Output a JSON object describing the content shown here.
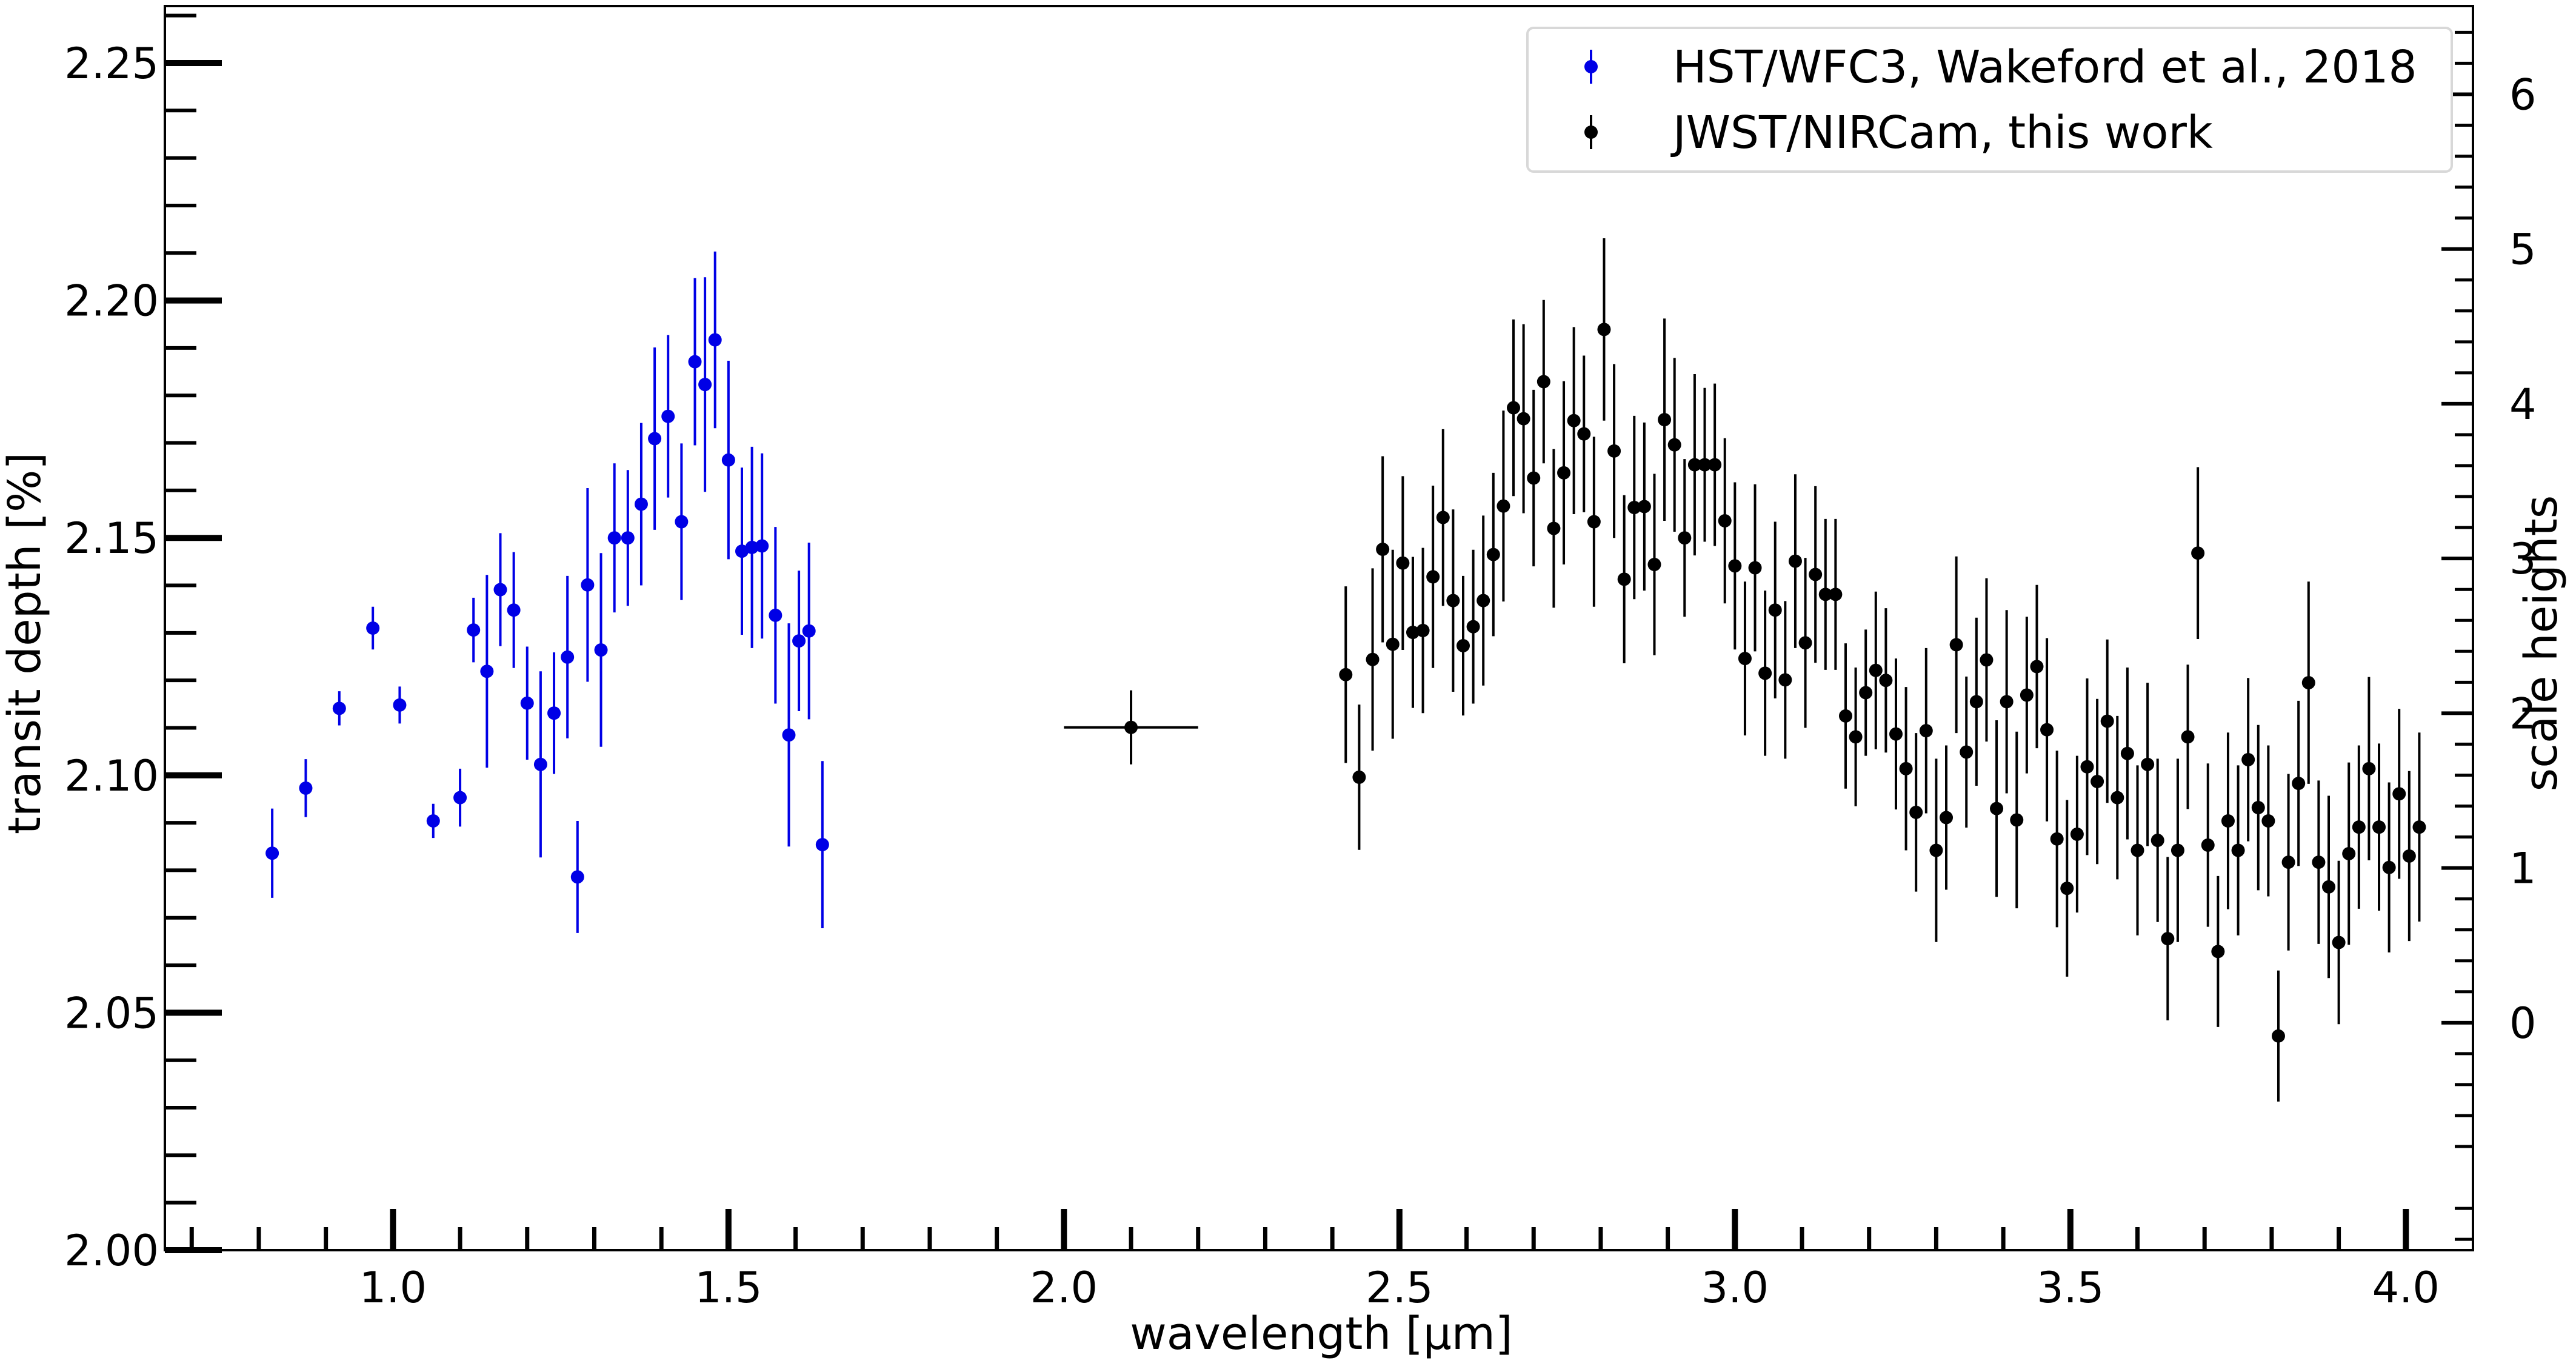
{
  "chart_data": {
    "type": "scatter",
    "xlabel": "wavelength [μm]",
    "ylabel": "transit depth [%]",
    "y2label": "scale heights",
    "xlim": [
      0.66,
      4.1
    ],
    "ylim": [
      2.0,
      2.262
    ],
    "y2lim": [
      -1.47,
      6.57
    ],
    "xticks": [
      "1.0",
      "1.5",
      "2.0",
      "2.5",
      "3.0",
      "3.5",
      "4.0"
    ],
    "yticks": [
      "2.00",
      "2.05",
      "2.10",
      "2.15",
      "2.20",
      "2.25"
    ],
    "y2ticks": [
      "0",
      "1",
      "2",
      "3",
      "4",
      "5",
      "6"
    ],
    "grid": false,
    "legend_position": "top-right",
    "series": [
      {
        "name": "HST/WFC3, Wakeford et al., 2018",
        "color": "#0000e6",
        "points": [
          [
            0.82,
            2.0836,
            0.0094
          ],
          [
            0.87,
            2.0973,
            0.0061
          ],
          [
            0.92,
            2.1141,
            0.0036
          ],
          [
            0.97,
            2.131,
            0.0045
          ],
          [
            1.01,
            2.1148,
            0.0039
          ],
          [
            1.06,
            2.0904,
            0.0036
          ],
          [
            1.1,
            2.0953,
            0.0061
          ],
          [
            1.12,
            2.1306,
            0.0068
          ],
          [
            1.14,
            2.1219,
            0.0203
          ],
          [
            1.16,
            2.1391,
            0.0119
          ],
          [
            1.18,
            2.1348,
            0.0122
          ],
          [
            1.2,
            2.1152,
            0.0119
          ],
          [
            1.22,
            2.1023,
            0.0196
          ],
          [
            1.24,
            2.1131,
            0.0128
          ],
          [
            1.26,
            2.1249,
            0.0171
          ],
          [
            1.275,
            2.0786,
            0.0118
          ],
          [
            1.29,
            2.1401,
            0.0204
          ],
          [
            1.31,
            2.1264,
            0.0204
          ],
          [
            1.33,
            2.15,
            0.0157
          ],
          [
            1.35,
            2.15,
            0.0143
          ],
          [
            1.37,
            2.1571,
            0.0171
          ],
          [
            1.39,
            2.1709,
            0.0192
          ],
          [
            1.41,
            2.1756,
            0.0171
          ],
          [
            1.43,
            2.1534,
            0.0165
          ],
          [
            1.45,
            2.1871,
            0.0176
          ],
          [
            1.465,
            2.1823,
            0.0226
          ],
          [
            1.48,
            2.1917,
            0.0186
          ],
          [
            1.5,
            2.1664,
            0.0209
          ],
          [
            1.52,
            2.1472,
            0.0176
          ],
          [
            1.535,
            2.148,
            0.0212
          ],
          [
            1.55,
            2.1483,
            0.0195
          ],
          [
            1.57,
            2.1337,
            0.0186
          ],
          [
            1.59,
            2.1085,
            0.0235
          ],
          [
            1.605,
            2.1283,
            0.0148
          ],
          [
            1.62,
            2.1304,
            0.0186
          ],
          [
            1.64,
            2.0854,
            0.0176
          ]
        ]
      },
      {
        "name": "JWST/NIRCam, this work",
        "color": "#000000",
        "points": [
          [
            2.1,
            2.1101,
            0.0078
          ],
          [
            2.42,
            2.1212,
            0.0186
          ],
          [
            2.44,
            2.0996,
            0.0153
          ],
          [
            2.46,
            2.1244,
            0.0192
          ],
          [
            2.475,
            2.1476,
            0.0196
          ],
          [
            2.49,
            2.1276,
            0.0199
          ],
          [
            2.505,
            2.1447,
            0.0183
          ],
          [
            2.52,
            2.1301,
            0.0159
          ],
          [
            2.535,
            2.1305,
            0.0174
          ],
          [
            2.55,
            2.1418,
            0.0192
          ],
          [
            2.565,
            2.1543,
            0.0186
          ],
          [
            2.58,
            2.1368,
            0.0192
          ],
          [
            2.595,
            2.1273,
            0.0147
          ],
          [
            2.61,
            2.1313,
            0.0162
          ],
          [
            2.625,
            2.1368,
            0.0179
          ],
          [
            2.64,
            2.1465,
            0.0172
          ],
          [
            2.655,
            2.1567,
            0.0201
          ],
          [
            2.67,
            2.1774,
            0.0186
          ],
          [
            2.685,
            2.1751,
            0.0199
          ],
          [
            2.7,
            2.1626,
            0.0186
          ],
          [
            2.715,
            2.1829,
            0.0172
          ],
          [
            2.73,
            2.152,
            0.0167
          ],
          [
            2.745,
            2.1637,
            0.0193
          ],
          [
            2.76,
            2.1747,
            0.0197
          ],
          [
            2.775,
            2.1719,
            0.0165
          ],
          [
            2.79,
            2.1534,
            0.0179
          ],
          [
            2.805,
            2.1939,
            0.0192
          ],
          [
            2.82,
            2.1683,
            0.0183
          ],
          [
            2.835,
            2.1413,
            0.0177
          ],
          [
            2.85,
            2.1564,
            0.0193
          ],
          [
            2.865,
            2.1566,
            0.0177
          ],
          [
            2.88,
            2.1444,
            0.0191
          ],
          [
            2.895,
            2.1749,
            0.0213
          ],
          [
            2.91,
            2.1696,
            0.0183
          ],
          [
            2.925,
            2.15,
            0.0166
          ],
          [
            2.94,
            2.1654,
            0.0191
          ],
          [
            2.955,
            2.1654,
            0.0162
          ],
          [
            2.97,
            2.1654,
            0.0171
          ],
          [
            2.985,
            2.1536,
            0.0174
          ],
          [
            3.0,
            2.1441,
            0.0176
          ],
          [
            3.015,
            2.1246,
            0.0162
          ],
          [
            3.03,
            2.1437,
            0.0176
          ],
          [
            3.045,
            2.1215,
            0.0174
          ],
          [
            3.06,
            2.1348,
            0.0186
          ],
          [
            3.075,
            2.1201,
            0.0166
          ],
          [
            3.09,
            2.1451,
            0.0183
          ],
          [
            3.105,
            2.1279,
            0.0179
          ],
          [
            3.12,
            2.1423,
            0.0186
          ],
          [
            3.135,
            2.1381,
            0.0159
          ],
          [
            3.15,
            2.1381,
            0.0159
          ],
          [
            3.165,
            2.1125,
            0.0153
          ],
          [
            3.18,
            2.1081,
            0.0146
          ],
          [
            3.195,
            2.1174,
            0.0133
          ],
          [
            3.21,
            2.1221,
            0.0166
          ],
          [
            3.225,
            2.12,
            0.0152
          ],
          [
            3.24,
            2.1087,
            0.0159
          ],
          [
            3.255,
            2.1014,
            0.0172
          ],
          [
            3.27,
            2.0922,
            0.0167
          ],
          [
            3.285,
            2.1094,
            0.0174
          ],
          [
            3.3,
            2.0842,
            0.0193
          ],
          [
            3.315,
            2.0911,
            0.0152
          ],
          [
            3.33,
            2.1275,
            0.0186
          ],
          [
            3.345,
            2.1049,
            0.0159
          ],
          [
            3.36,
            2.1155,
            0.0177
          ],
          [
            3.375,
            2.1243,
            0.0172
          ],
          [
            3.39,
            2.093,
            0.0186
          ],
          [
            3.405,
            2.1155,
            0.0193
          ],
          [
            3.42,
            2.0906,
            0.0186
          ],
          [
            3.435,
            2.1169,
            0.0165
          ],
          [
            3.45,
            2.1229,
            0.0172
          ],
          [
            3.465,
            2.1096,
            0.0193
          ],
          [
            3.48,
            2.0866,
            0.0186
          ],
          [
            3.495,
            2.0762,
            0.0186
          ],
          [
            3.51,
            2.0876,
            0.0165
          ],
          [
            3.525,
            2.1018,
            0.0186
          ],
          [
            3.54,
            2.0987,
            0.0174
          ],
          [
            3.555,
            2.1114,
            0.0172
          ],
          [
            3.57,
            2.0953,
            0.0172
          ],
          [
            3.585,
            2.1046,
            0.0181
          ],
          [
            3.6,
            2.0842,
            0.0179
          ],
          [
            3.615,
            2.1023,
            0.0172
          ],
          [
            3.63,
            2.0863,
            0.0172
          ],
          [
            3.645,
            2.0656,
            0.0172
          ],
          [
            3.66,
            2.0842,
            0.0193
          ],
          [
            3.675,
            2.1081,
            0.0152
          ],
          [
            3.69,
            2.1468,
            0.0181
          ],
          [
            3.705,
            2.0853,
            0.0172
          ],
          [
            3.72,
            2.0629,
            0.0159
          ],
          [
            3.735,
            2.0904,
            0.0186
          ],
          [
            3.75,
            2.0842,
            0.0179
          ],
          [
            3.765,
            2.1033,
            0.0172
          ],
          [
            3.78,
            2.0932,
            0.0174
          ],
          [
            3.795,
            2.0904,
            0.0159
          ],
          [
            3.81,
            2.0451,
            0.0138
          ],
          [
            3.825,
            2.0817,
            0.0186
          ],
          [
            3.84,
            2.0983,
            0.0174
          ],
          [
            3.855,
            2.1195,
            0.0213
          ],
          [
            3.87,
            2.0817,
            0.0172
          ],
          [
            3.885,
            2.0765,
            0.0192
          ],
          [
            3.9,
            2.0648,
            0.0172
          ],
          [
            3.915,
            2.0835,
            0.0192
          ],
          [
            3.93,
            2.0891,
            0.0172
          ],
          [
            3.945,
            2.1014,
            0.0193
          ],
          [
            3.96,
            2.0891,
            0.0176
          ],
          [
            3.975,
            2.0806,
            0.0179
          ],
          [
            3.99,
            2.0961,
            0.0179
          ],
          [
            4.005,
            2.083,
            0.0179
          ],
          [
            4.02,
            2.0891,
            0.0199
          ]
        ]
      }
    ],
    "x_error_bars": [
      {
        "series": 1,
        "point": 0,
        "xerr": 0.1
      }
    ]
  }
}
